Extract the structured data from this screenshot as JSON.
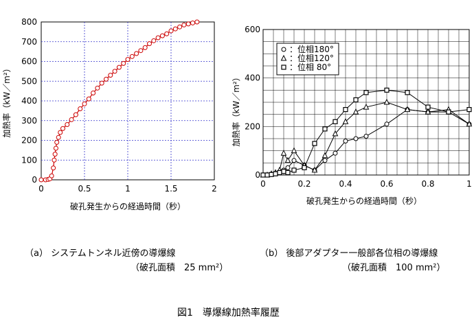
{
  "figure_caption": "図1　導爆線加熱率履歴",
  "panels": [
    {
      "caption_line1": "（a） システムトンネル近傍の導爆線",
      "caption_line2": "（破孔面積　25 mm²）"
    },
    {
      "caption_line1": "（b） 後部アダプター一般部各位相の導爆線",
      "caption_line2": "（破孔面積　100 mm²）"
    }
  ],
  "colors": {
    "panel_a_series": "#cc0000",
    "panel_a_grid": "#3333cc",
    "panel_b_series": "#000000",
    "grid_b": "#000000"
  },
  "chart_data": [
    {
      "type": "line",
      "ylabel": "加熱率（kW／m²）",
      "xlabel": "破孔発生からの経過時間（秒）",
      "xlim": [
        0,
        2
      ],
      "ylim": [
        0,
        800
      ],
      "xticks": [
        "0",
        "0.5",
        "1",
        "1.5",
        "2"
      ],
      "yticks": [
        "0",
        "100",
        "200",
        "300",
        "400",
        "500",
        "600",
        "700",
        "800"
      ],
      "grid": "dashed",
      "series": [
        {
          "marker": "circle",
          "x": [
            0.0,
            0.05,
            0.08,
            0.1,
            0.12,
            0.14,
            0.15,
            0.16,
            0.17,
            0.18,
            0.2,
            0.22,
            0.25,
            0.3,
            0.35,
            0.4,
            0.45,
            0.5,
            0.55,
            0.6,
            0.65,
            0.7,
            0.75,
            0.8,
            0.85,
            0.9,
            0.95,
            1.0,
            1.05,
            1.1,
            1.15,
            1.2,
            1.25,
            1.3,
            1.35,
            1.4,
            1.45,
            1.5,
            1.55,
            1.6,
            1.65,
            1.7,
            1.75,
            1.8
          ],
          "y": [
            0,
            0,
            2,
            5,
            20,
            60,
            100,
            130,
            160,
            190,
            215,
            240,
            260,
            280,
            305,
            330,
            360,
            385,
            410,
            440,
            465,
            490,
            510,
            530,
            550,
            570,
            590,
            610,
            625,
            640,
            655,
            670,
            690,
            705,
            720,
            730,
            740,
            755,
            765,
            775,
            785,
            790,
            795,
            800
          ]
        }
      ]
    },
    {
      "type": "line",
      "ylabel": "加熱率（kW／m²）",
      "xlabel": "破孔発生からの経過時間（秒）",
      "xlim": [
        0,
        1
      ],
      "ylim": [
        0,
        600
      ],
      "xticks": [
        "0",
        "0.2",
        "0.4",
        "0.6",
        "0.8",
        "1"
      ],
      "yticks": [
        "0",
        "200",
        "400",
        "600"
      ],
      "grid": "solid",
      "legend": "top-left",
      "series": [
        {
          "name": "：位相180°",
          "marker": "circle",
          "x": [
            0,
            0.02,
            0.04,
            0.06,
            0.08,
            0.1,
            0.12,
            0.15,
            0.2,
            0.25,
            0.3,
            0.35,
            0.4,
            0.45,
            0.5,
            0.6,
            0.7,
            0.8,
            0.9,
            1.0
          ],
          "y": [
            0,
            0,
            2,
            5,
            10,
            20,
            30,
            60,
            40,
            20,
            60,
            90,
            140,
            150,
            160,
            210,
            270,
            260,
            260,
            210
          ]
        },
        {
          "name": "：位相120°",
          "marker": "triangle",
          "x": [
            0,
            0.02,
            0.04,
            0.06,
            0.08,
            0.1,
            0.12,
            0.15,
            0.2,
            0.25,
            0.3,
            0.35,
            0.4,
            0.45,
            0.5,
            0.6,
            0.7,
            0.8,
            0.9,
            1.0
          ],
          "y": [
            0,
            0,
            5,
            10,
            20,
            90,
            60,
            100,
            40,
            20,
            80,
            170,
            220,
            260,
            280,
            300,
            270,
            260,
            270,
            210
          ]
        },
        {
          "name": "：位相 80°",
          "marker": "square",
          "x": [
            0,
            0.02,
            0.04,
            0.06,
            0.08,
            0.1,
            0.12,
            0.15,
            0.2,
            0.25,
            0.3,
            0.35,
            0.4,
            0.45,
            0.5,
            0.6,
            0.7,
            0.8,
            0.9,
            1.0
          ],
          "y": [
            0,
            0,
            2,
            5,
            10,
            15,
            10,
            20,
            30,
            130,
            190,
            220,
            270,
            310,
            340,
            350,
            340,
            280,
            260,
            270
          ]
        }
      ]
    }
  ]
}
